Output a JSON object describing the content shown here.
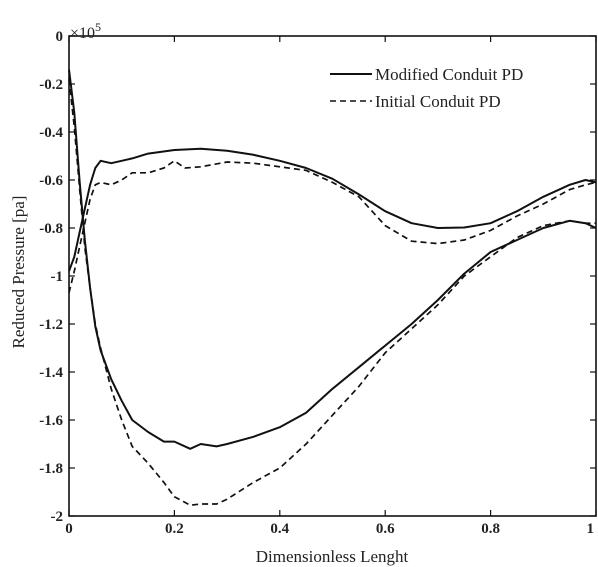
{
  "chart_data": {
    "type": "line",
    "title": "",
    "xlabel": "Dimensionless Lenght",
    "ylabel": "Reduced Pressure [pa]",
    "y_exponent_label": "×10",
    "y_exponent_power": "5",
    "xlim": [
      0,
      1
    ],
    "ylim": [
      -2,
      0
    ],
    "x_ticks": [
      0,
      0.2,
      0.4,
      0.6,
      0.8,
      1
    ],
    "x_tick_labels": [
      "0",
      "0.2",
      "0.4",
      "0.6",
      "0.8",
      "1"
    ],
    "y_ticks": [
      0,
      -0.2,
      -0.4,
      -0.6,
      -0.8,
      -1,
      -1.2,
      -1.4,
      -1.6,
      -1.8,
      -2
    ],
    "y_tick_labels": [
      "0",
      "-0.2",
      "-0.4",
      "-0.6",
      "-0.8",
      "-1",
      "-1.2",
      "-1.4",
      "-1.6",
      "-1.8",
      "-2"
    ],
    "grid": false,
    "legend_position": "top-right",
    "series": [
      {
        "name": "Modified Conduit PD",
        "line_style": "solid",
        "color": "#111111",
        "segments": [
          [
            [
              0,
              -0.98
            ],
            [
              0.01,
              -0.92
            ],
            [
              0.02,
              -0.82
            ],
            [
              0.03,
              -0.72
            ],
            [
              0.04,
              -0.62
            ],
            [
              0.05,
              -0.55
            ],
            [
              0.06,
              -0.52
            ],
            [
              0.08,
              -0.53
            ],
            [
              0.1,
              -0.52
            ],
            [
              0.12,
              -0.51
            ],
            [
              0.15,
              -0.49
            ],
            [
              0.2,
              -0.475
            ],
            [
              0.25,
              -0.47
            ],
            [
              0.3,
              -0.478
            ],
            [
              0.35,
              -0.495
            ],
            [
              0.4,
              -0.52
            ],
            [
              0.45,
              -0.55
            ],
            [
              0.5,
              -0.595
            ],
            [
              0.55,
              -0.66
            ],
            [
              0.6,
              -0.73
            ],
            [
              0.65,
              -0.78
            ],
            [
              0.7,
              -0.8
            ],
            [
              0.75,
              -0.798
            ],
            [
              0.8,
              -0.78
            ],
            [
              0.85,
              -0.73
            ],
            [
              0.9,
              -0.67
            ],
            [
              0.95,
              -0.62
            ],
            [
              0.98,
              -0.6
            ],
            [
              1,
              -0.61
            ]
          ],
          [
            [
              0,
              -0.14
            ],
            [
              0.01,
              -0.32
            ],
            [
              0.02,
              -0.6
            ],
            [
              0.03,
              -0.85
            ],
            [
              0.04,
              -1.05
            ],
            [
              0.05,
              -1.21
            ],
            [
              0.06,
              -1.31
            ],
            [
              0.08,
              -1.43
            ],
            [
              0.1,
              -1.52
            ],
            [
              0.12,
              -1.6
            ],
            [
              0.15,
              -1.65
            ],
            [
              0.18,
              -1.69
            ],
            [
              0.2,
              -1.69
            ],
            [
              0.23,
              -1.72
            ],
            [
              0.25,
              -1.7
            ],
            [
              0.28,
              -1.71
            ],
            [
              0.3,
              -1.7
            ],
            [
              0.35,
              -1.67
            ],
            [
              0.4,
              -1.63
            ],
            [
              0.45,
              -1.57
            ],
            [
              0.5,
              -1.47
            ],
            [
              0.55,
              -1.38
            ],
            [
              0.6,
              -1.29
            ],
            [
              0.65,
              -1.2
            ],
            [
              0.7,
              -1.1
            ],
            [
              0.75,
              -0.99
            ],
            [
              0.8,
              -0.9
            ],
            [
              0.85,
              -0.85
            ],
            [
              0.9,
              -0.8
            ],
            [
              0.95,
              -0.77
            ],
            [
              0.98,
              -0.78
            ],
            [
              1,
              -0.8
            ]
          ]
        ]
      },
      {
        "name": "Initial Conduit PD",
        "line_style": "dashed",
        "color": "#111111",
        "segments": [
          [
            [
              0,
              -1.07
            ],
            [
              0.01,
              -0.98
            ],
            [
              0.02,
              -0.88
            ],
            [
              0.03,
              -0.78
            ],
            [
              0.04,
              -0.68
            ],
            [
              0.05,
              -0.62
            ],
            [
              0.06,
              -0.61
            ],
            [
              0.08,
              -0.62
            ],
            [
              0.1,
              -0.6
            ],
            [
              0.12,
              -0.57
            ],
            [
              0.15,
              -0.57
            ],
            [
              0.18,
              -0.55
            ],
            [
              0.2,
              -0.52
            ],
            [
              0.22,
              -0.55
            ],
            [
              0.25,
              -0.545
            ],
            [
              0.3,
              -0.525
            ],
            [
              0.35,
              -0.53
            ],
            [
              0.4,
              -0.545
            ],
            [
              0.45,
              -0.56
            ],
            [
              0.5,
              -0.61
            ],
            [
              0.55,
              -0.67
            ],
            [
              0.6,
              -0.79
            ],
            [
              0.65,
              -0.855
            ],
            [
              0.7,
              -0.865
            ],
            [
              0.75,
              -0.85
            ],
            [
              0.8,
              -0.81
            ],
            [
              0.85,
              -0.75
            ],
            [
              0.9,
              -0.7
            ],
            [
              0.95,
              -0.64
            ],
            [
              0.98,
              -0.62
            ],
            [
              1,
              -0.61
            ]
          ],
          [
            [
              0,
              -0.18
            ],
            [
              0.01,
              -0.38
            ],
            [
              0.02,
              -0.63
            ],
            [
              0.03,
              -0.88
            ],
            [
              0.04,
              -1.05
            ],
            [
              0.05,
              -1.2
            ],
            [
              0.06,
              -1.3
            ],
            [
              0.08,
              -1.47
            ],
            [
              0.1,
              -1.6
            ],
            [
              0.12,
              -1.71
            ],
            [
              0.15,
              -1.78
            ],
            [
              0.18,
              -1.86
            ],
            [
              0.2,
              -1.92
            ],
            [
              0.23,
              -1.955
            ],
            [
              0.25,
              -1.95
            ],
            [
              0.28,
              -1.95
            ],
            [
              0.3,
              -1.93
            ],
            [
              0.35,
              -1.86
            ],
            [
              0.4,
              -1.8
            ],
            [
              0.45,
              -1.7
            ],
            [
              0.5,
              -1.58
            ],
            [
              0.55,
              -1.46
            ],
            [
              0.6,
              -1.32
            ],
            [
              0.65,
              -1.22
            ],
            [
              0.7,
              -1.12
            ],
            [
              0.75,
              -1.0
            ],
            [
              0.8,
              -0.92
            ],
            [
              0.85,
              -0.84
            ],
            [
              0.9,
              -0.79
            ],
            [
              0.95,
              -0.77
            ],
            [
              0.98,
              -0.78
            ],
            [
              1,
              -0.78
            ]
          ]
        ]
      }
    ]
  }
}
